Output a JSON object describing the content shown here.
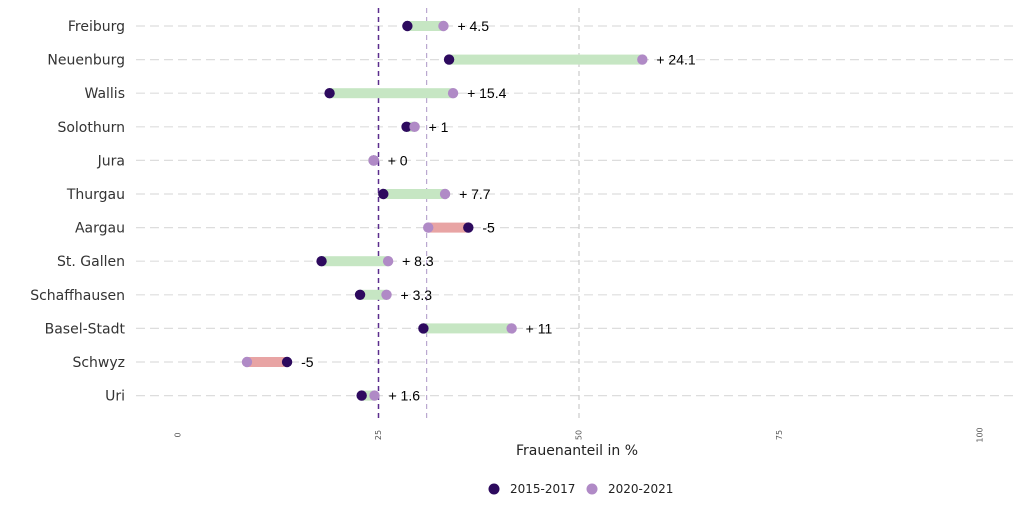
{
  "chart_data": {
    "type": "dumbbell",
    "categories": [
      "Freiburg",
      "Neuenburg",
      "Wallis",
      "Solothurn",
      "Jura",
      "Thurgau",
      "Aargau",
      "St. Gallen",
      "Schaffhausen",
      "Basel-Stadt",
      "Schwyz",
      "Uri"
    ],
    "series": [
      {
        "name": "2015-2017",
        "color": "#2d0a5e",
        "values": [
          28.6,
          33.8,
          18.9,
          28.5,
          24.4,
          25.6,
          36.2,
          17.9,
          22.7,
          30.6,
          13.6,
          22.9
        ]
      },
      {
        "name": "2020-2021",
        "color": "#b08ac6",
        "values": [
          33.1,
          57.9,
          34.3,
          29.5,
          24.4,
          33.3,
          31.2,
          26.2,
          26.0,
          41.6,
          8.6,
          24.5
        ]
      }
    ],
    "diff_labels": [
      "+ 4.5",
      "+ 24.1",
      "+ 15.4",
      "+ 1",
      "+ 0",
      "+ 7.7",
      "-5",
      "+ 8.3",
      "+ 3.3",
      "+ 11",
      "-5",
      "+ 1.6"
    ],
    "increase_color": "#c6e6c3",
    "decrease_color": "#e8a4a4",
    "xlabel": "Frauenanteil in %",
    "xlim": [
      0,
      100
    ],
    "xticks": [
      0,
      25,
      50,
      75,
      100
    ],
    "reference_lines": [
      {
        "value": 25,
        "style": "dashed",
        "color": "#5b2d8e"
      },
      {
        "value": 31,
        "style": "dashed",
        "color": "#b9a6cf"
      },
      {
        "value": 50,
        "style": "dashed",
        "color": "#cccccc"
      }
    ],
    "grid": true,
    "legend_position": "bottom"
  }
}
